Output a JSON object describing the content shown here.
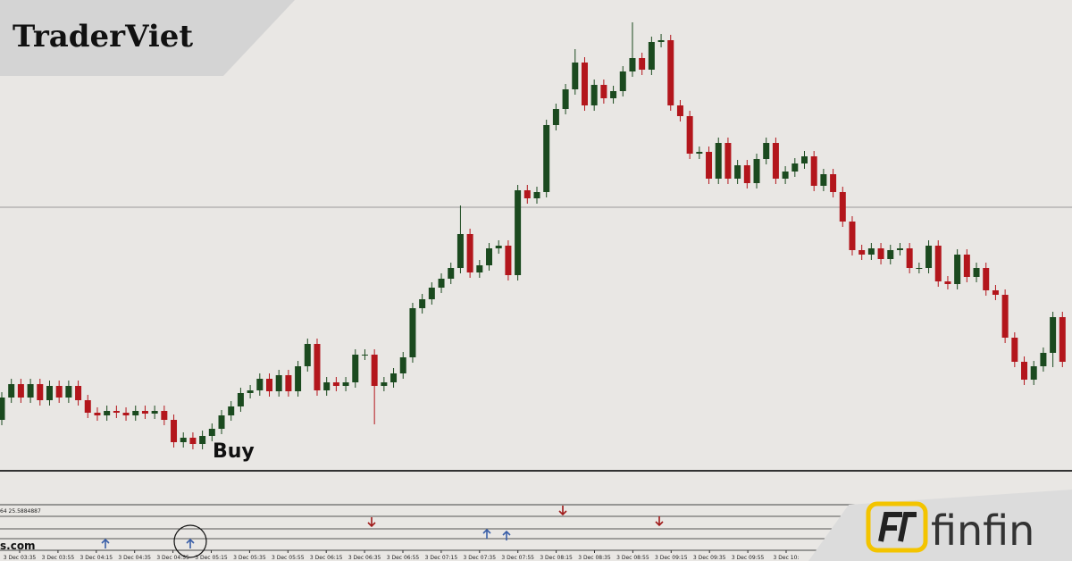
{
  "header": {
    "brand": "TraderViet"
  },
  "chart_data": {
    "type": "candlestick",
    "annotation": "Buy",
    "indicator_label": "64 25.5884887",
    "watermark": "s.com",
    "x_labels": [
      "3 Dec 03:35",
      "3 Dec 03:55",
      "3 Dec 04:15",
      "3 Dec 04:35",
      "3 Dec 04:55",
      "3 Dec 05:15",
      "3 Dec 05:35",
      "3 Dec 05:55",
      "3 Dec 06:15",
      "3 Dec 06:35",
      "3 Dec 06:55",
      "3 Dec 07:15",
      "3 Dec 07:35",
      "3 Dec 07:55",
      "3 Dec 08:15",
      "3 Dec 08:35",
      "3 Dec 08:55",
      "3 Dec 09:15",
      "3 Dec 09:35",
      "3 Dec 09:55",
      "3 Dec 10:"
    ],
    "ylim": [
      0,
      530
    ],
    "up_color": "#1b4a1f",
    "down_color": "#b3161c",
    "open": [
      60,
      85,
      100,
      85,
      100,
      82,
      98,
      85,
      98,
      82,
      68,
      65,
      70,
      68,
      65,
      70,
      67,
      70,
      60,
      35,
      40,
      33,
      42,
      50,
      65,
      75,
      90,
      93,
      106,
      92,
      110,
      92,
      120,
      145,
      93,
      102,
      98,
      102,
      133,
      133,
      98,
      102,
      112,
      130,
      185,
      195,
      208,
      218,
      230,
      268,
      225,
      233,
      252,
      255,
      222,
      317,
      308,
      315,
      390,
      408,
      430,
      460,
      412,
      435,
      420,
      428,
      450,
      465,
      452,
      483,
      485,
      412,
      400,
      358,
      360,
      330,
      370,
      330,
      345,
      325,
      352,
      370,
      330,
      338,
      347,
      355,
      322,
      335,
      315,
      282,
      250,
      245,
      252,
      240,
      250,
      252,
      230,
      230,
      255,
      215,
      212,
      245,
      220,
      230,
      205,
      200,
      152,
      125,
      105,
      120,
      135,
      175
    ],
    "high": [
      91,
      106,
      106,
      106,
      106,
      104,
      104,
      104,
      104,
      88,
      74,
      76,
      76,
      74,
      76,
      76,
      76,
      76,
      66,
      46,
      46,
      48,
      56,
      71,
      81,
      96,
      99,
      112,
      112,
      116,
      116,
      126,
      151,
      151,
      108,
      108,
      108,
      139,
      139,
      139,
      108,
      118,
      136,
      191,
      201,
      214,
      224,
      236,
      300,
      274,
      239,
      258,
      261,
      261,
      323,
      323,
      321,
      396,
      414,
      436,
      475,
      466,
      441,
      441,
      434,
      456,
      505,
      471,
      489,
      492,
      491,
      418,
      406,
      366,
      366,
      376,
      376,
      351,
      351,
      358,
      376,
      376,
      344,
      353,
      361,
      361,
      341,
      341,
      321,
      288,
      256,
      258,
      258,
      256,
      258,
      258,
      236,
      261,
      261,
      221,
      251,
      251,
      236,
      236,
      211,
      206,
      158,
      131,
      126,
      141,
      181,
      181
    ],
    "low": [
      54,
      79,
      79,
      79,
      76,
      76,
      79,
      79,
      76,
      62,
      59,
      59,
      62,
      59,
      59,
      61,
      61,
      54,
      29,
      29,
      27,
      27,
      36,
      44,
      59,
      69,
      84,
      87,
      86,
      86,
      86,
      86,
      114,
      87,
      87,
      92,
      92,
      96,
      127,
      55,
      92,
      96,
      106,
      124,
      179,
      189,
      202,
      212,
      224,
      219,
      219,
      227,
      246,
      216,
      216,
      302,
      302,
      309,
      384,
      402,
      424,
      406,
      406,
      414,
      414,
      422,
      444,
      446,
      446,
      477,
      406,
      394,
      352,
      352,
      324,
      324,
      324,
      324,
      319,
      319,
      346,
      324,
      324,
      332,
      341,
      316,
      316,
      309,
      276,
      244,
      239,
      239,
      234,
      234,
      244,
      224,
      224,
      224,
      209,
      206,
      206,
      214,
      214,
      199,
      194,
      146,
      119,
      99,
      99,
      114,
      119,
      119
    ],
    "close": [
      85,
      100,
      85,
      100,
      82,
      98,
      85,
      98,
      82,
      68,
      65,
      70,
      68,
      65,
      70,
      67,
      70,
      60,
      35,
      40,
      33,
      42,
      50,
      65,
      75,
      90,
      93,
      106,
      92,
      110,
      92,
      120,
      145,
      93,
      102,
      98,
      102,
      133,
      133,
      98,
      102,
      112,
      130,
      185,
      195,
      208,
      218,
      230,
      268,
      225,
      233,
      252,
      255,
      222,
      317,
      308,
      315,
      390,
      408,
      430,
      460,
      412,
      435,
      420,
      428,
      450,
      465,
      452,
      483,
      485,
      412,
      400,
      358,
      360,
      330,
      370,
      330,
      345,
      325,
      352,
      370,
      330,
      338,
      347,
      355,
      322,
      335,
      315,
      282,
      250,
      245,
      252,
      240,
      250,
      252,
      230,
      230,
      255,
      215,
      212,
      245,
      220,
      230,
      205,
      200,
      152,
      125,
      105,
      120,
      135,
      175,
      125
    ]
  },
  "logo": {
    "text": "finfin"
  }
}
